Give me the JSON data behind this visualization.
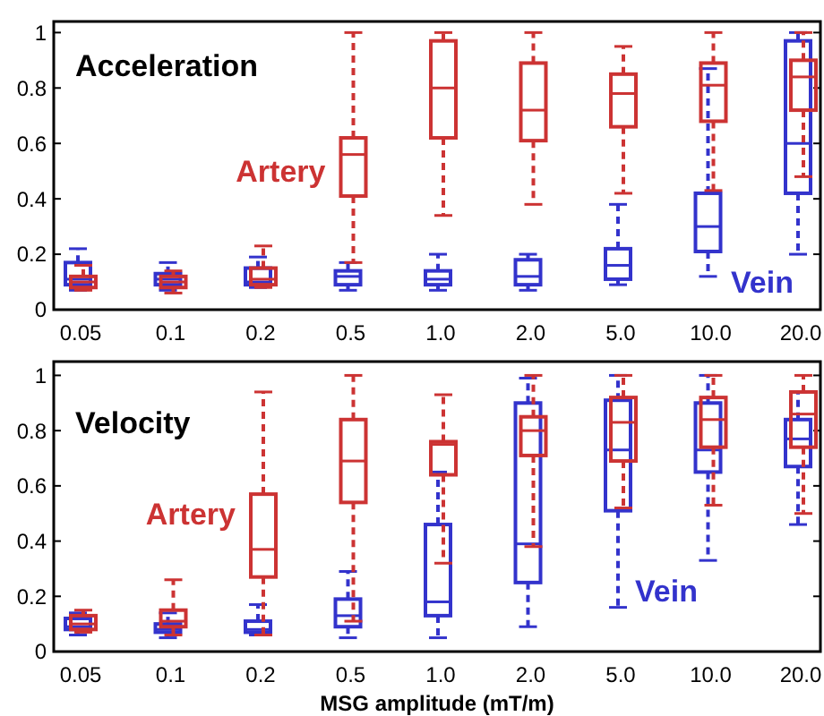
{
  "chart_data": [
    {
      "type": "box",
      "title": "Acceleration",
      "categories": [
        "0.05",
        "0.1",
        "0.2",
        "0.5",
        "1.0",
        "2.0",
        "5.0",
        "10.0",
        "20.0"
      ],
      "ylim": [
        0,
        1.04
      ],
      "yticks": [
        0,
        0.2,
        0.4,
        0.6,
        0.8,
        1
      ],
      "line_style": "dashed",
      "series": [
        {
          "name": "Vein",
          "color": "#3333cc",
          "boxes": [
            {
              "low": 0.07,
              "q1": 0.09,
              "median": 0.11,
              "q3": 0.17,
              "high": 0.22
            },
            {
              "low": 0.07,
              "q1": 0.09,
              "median": 0.11,
              "q3": 0.13,
              "high": 0.17
            },
            {
              "low": 0.08,
              "q1": 0.09,
              "median": 0.1,
              "q3": 0.15,
              "high": 0.19
            },
            {
              "low": 0.07,
              "q1": 0.09,
              "median": 0.12,
              "q3": 0.14,
              "high": 0.17
            },
            {
              "low": 0.07,
              "q1": 0.09,
              "median": 0.11,
              "q3": 0.14,
              "high": 0.2
            },
            {
              "low": 0.07,
              "q1": 0.09,
              "median": 0.12,
              "q3": 0.18,
              "high": 0.2
            },
            {
              "low": 0.09,
              "q1": 0.11,
              "median": 0.16,
              "q3": 0.22,
              "high": 0.38
            },
            {
              "low": 0.12,
              "q1": 0.21,
              "median": 0.3,
              "q3": 0.42,
              "high": 0.87
            },
            {
              "low": 0.2,
              "q1": 0.42,
              "median": 0.6,
              "q3": 0.97,
              "high": 1.0
            }
          ]
        },
        {
          "name": "Artery",
          "color": "#cc3333",
          "boxes": [
            {
              "low": 0.07,
              "q1": 0.08,
              "median": 0.1,
              "q3": 0.12,
              "high": 0.16
            },
            {
              "low": 0.06,
              "q1": 0.08,
              "median": 0.1,
              "q3": 0.12,
              "high": 0.14
            },
            {
              "low": 0.08,
              "q1": 0.09,
              "median": 0.11,
              "q3": 0.15,
              "high": 0.23
            },
            {
              "low": 0.17,
              "q1": 0.41,
              "median": 0.56,
              "q3": 0.62,
              "high": 1.0
            },
            {
              "low": 0.34,
              "q1": 0.62,
              "median": 0.8,
              "q3": 0.97,
              "high": 1.0
            },
            {
              "low": 0.38,
              "q1": 0.61,
              "median": 0.72,
              "q3": 0.89,
              "high": 1.0
            },
            {
              "low": 0.42,
              "q1": 0.66,
              "median": 0.78,
              "q3": 0.85,
              "high": 0.95
            },
            {
              "low": 0.43,
              "q1": 0.68,
              "median": 0.81,
              "q3": 0.89,
              "high": 1.0
            },
            {
              "low": 0.48,
              "q1": 0.72,
              "median": 0.84,
              "q3": 0.9,
              "high": 1.0
            }
          ]
        }
      ]
    },
    {
      "type": "box",
      "title": "Velocity",
      "xlabel": "MSG amplitude (mT/m)",
      "categories": [
        "0.05",
        "0.1",
        "0.2",
        "0.5",
        "1.0",
        "2.0",
        "5.0",
        "10.0",
        "20.0"
      ],
      "ylim": [
        0,
        1.05
      ],
      "yticks": [
        0,
        0.2,
        0.4,
        0.6,
        0.8,
        1
      ],
      "line_style": "dashed",
      "series": [
        {
          "name": "Vein",
          "color": "#3333cc",
          "boxes": [
            {
              "low": 0.06,
              "q1": 0.08,
              "median": 0.09,
              "q3": 0.12,
              "high": 0.14
            },
            {
              "low": 0.05,
              "q1": 0.07,
              "median": 0.08,
              "q3": 0.1,
              "high": 0.14
            },
            {
              "low": 0.06,
              "q1": 0.07,
              "median": 0.08,
              "q3": 0.11,
              "high": 0.17
            },
            {
              "low": 0.05,
              "q1": 0.09,
              "median": 0.13,
              "q3": 0.19,
              "high": 0.29
            },
            {
              "low": 0.05,
              "q1": 0.13,
              "median": 0.18,
              "q3": 0.46,
              "high": 0.65
            },
            {
              "low": 0.09,
              "q1": 0.25,
              "median": 0.39,
              "q3": 0.9,
              "high": 0.99
            },
            {
              "low": 0.16,
              "q1": 0.51,
              "median": 0.73,
              "q3": 0.91,
              "high": 1.0
            },
            {
              "low": 0.33,
              "q1": 0.65,
              "median": 0.73,
              "q3": 0.9,
              "high": 1.0
            },
            {
              "low": 0.46,
              "q1": 0.67,
              "median": 0.77,
              "q3": 0.84,
              "high": 0.94
            }
          ]
        },
        {
          "name": "Artery",
          "color": "#cc3333",
          "boxes": [
            {
              "low": 0.07,
              "q1": 0.08,
              "median": 0.1,
              "q3": 0.13,
              "high": 0.15
            },
            {
              "low": 0.06,
              "q1": 0.09,
              "median": 0.11,
              "q3": 0.15,
              "high": 0.26
            },
            {
              "low": 0.06,
              "q1": 0.27,
              "median": 0.37,
              "q3": 0.57,
              "high": 0.94
            },
            {
              "low": 0.11,
              "q1": 0.54,
              "median": 0.69,
              "q3": 0.84,
              "high": 1.0
            },
            {
              "low": 0.32,
              "q1": 0.64,
              "median": 0.75,
              "q3": 0.76,
              "high": 0.93
            },
            {
              "low": 0.38,
              "q1": 0.71,
              "median": 0.8,
              "q3": 0.85,
              "high": 1.0
            },
            {
              "low": 0.52,
              "q1": 0.69,
              "median": 0.83,
              "q3": 0.92,
              "high": 1.0
            },
            {
              "low": 0.53,
              "q1": 0.74,
              "median": 0.84,
              "q3": 0.92,
              "high": 1.0
            },
            {
              "low": 0.5,
              "q1": 0.74,
              "median": 0.86,
              "q3": 0.94,
              "high": 1.0
            }
          ]
        }
      ]
    }
  ]
}
